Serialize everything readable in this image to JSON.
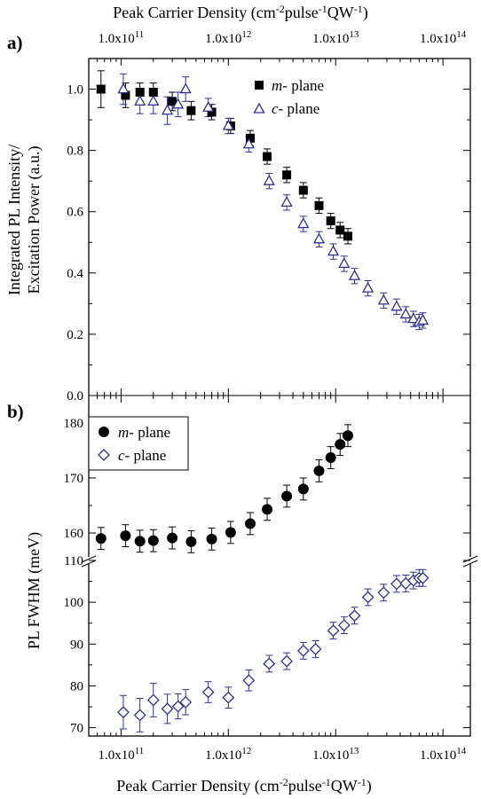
{
  "top_axis_label": "Peak Carrier Density (cm-2pulse-1QW-1)",
  "bottom_axis_label": "Peak Carrier Density (cm-2pulse-1QW-1)",
  "x_tick_labels": [
    "1.0x10^11",
    "1.0x10^12",
    "1.0x10^13",
    "1.0x10^14"
  ],
  "chart_data": [
    {
      "panel_label": "a)",
      "type": "scatter",
      "xlabel": "Peak Carrier Density (cm-2pulse-1QW-1)",
      "ylabel_lines": [
        "Integrated PL Intensity/",
        "Excitation Power (a.u.)"
      ],
      "xscale": "log",
      "xlim": [
        50000000000.0,
        180000000000000.0
      ],
      "ylim": [
        0,
        1.1
      ],
      "y_ticks": [
        "0.0",
        "0.2",
        "0.4",
        "0.6",
        "0.8",
        "1.0"
      ],
      "legend_position": "top-right",
      "series": [
        {
          "name": "m- plane",
          "italic_part": "m",
          "label_rest": "- plane",
          "marker": "filled-square",
          "color": "#000000",
          "x": [
            65000000000.0,
            110000000000.0,
            150000000000.0,
            200000000000.0,
            300000000000.0,
            450000000000.0,
            700000000000.0,
            1050000000000.0,
            1600000000000.0,
            2300000000000.0,
            3500000000000.0,
            5000000000000.0,
            7000000000000.0,
            9000000000000.0,
            11000000000000.0,
            13000000000000.0
          ],
          "y": [
            1.0,
            0.98,
            0.99,
            0.99,
            0.96,
            0.93,
            0.925,
            0.88,
            0.84,
            0.78,
            0.72,
            0.67,
            0.62,
            0.57,
            0.54,
            0.52
          ],
          "err": [
            0.06,
            0.04,
            0.03,
            0.03,
            0.03,
            0.03,
            0.025,
            0.025,
            0.025,
            0.025,
            0.025,
            0.025,
            0.025,
            0.025,
            0.025,
            0.025
          ]
        },
        {
          "name": "c- plane",
          "italic_part": "c",
          "label_rest": "- plane",
          "marker": "open-triangle",
          "color": "#2e3192",
          "x": [
            105000000000.0,
            150000000000.0,
            200000000000.0,
            270000000000.0,
            340000000000.0,
            400000000000.0,
            650000000000.0,
            1000000000000.0,
            1550000000000.0,
            2400000000000.0,
            3500000000000.0,
            5000000000000.0,
            7000000000000.0,
            9500000000000.0,
            12000000000000.0,
            15000000000000.0,
            20000000000000.0,
            28000000000000.0,
            37000000000000.0,
            45000000000000.0,
            53000000000000.0,
            60000000000000.0,
            65000000000000.0
          ],
          "y": [
            1.0,
            0.96,
            0.96,
            0.93,
            0.95,
            1.0,
            0.94,
            0.88,
            0.82,
            0.7,
            0.63,
            0.56,
            0.51,
            0.47,
            0.43,
            0.39,
            0.35,
            0.31,
            0.29,
            0.265,
            0.25,
            0.24,
            0.245
          ],
          "err": [
            0.05,
            0.04,
            0.04,
            0.045,
            0.04,
            0.04,
            0.03,
            0.025,
            0.025,
            0.025,
            0.025,
            0.025,
            0.025,
            0.025,
            0.025,
            0.025,
            0.025,
            0.025,
            0.025,
            0.025,
            0.025,
            0.025,
            0.025
          ]
        }
      ]
    },
    {
      "panel_label": "b)",
      "type": "scatter",
      "xlabel": "Peak Carrier Density (cm-2pulse-1QW-1)",
      "ylabel": "PL FWHM (meV)",
      "xscale": "log",
      "xlim": [
        50000000000.0,
        180000000000000.0
      ],
      "axis_break": true,
      "y_segments": [
        {
          "range": [
            155,
            185
          ],
          "ticks": [
            160,
            170,
            180
          ]
        },
        {
          "range": [
            68,
            110
          ],
          "ticks": [
            70,
            80,
            90,
            100,
            110
          ]
        }
      ],
      "legend_position": "top-left",
      "series": [
        {
          "name": "m- plane",
          "italic_part": "m",
          "label_rest": "- plane",
          "marker": "filled-circle",
          "color": "#000000",
          "x": [
            65000000000.0,
            110000000000.0,
            150000000000.0,
            200000000000.0,
            300000000000.0,
            450000000000.0,
            700000000000.0,
            1050000000000.0,
            1600000000000.0,
            2300000000000.0,
            3500000000000.0,
            5000000000000.0,
            7000000000000.0,
            9000000000000.0,
            11000000000000.0,
            13000000000000.0
          ],
          "y": [
            159,
            159.5,
            158.5,
            158.6,
            159.1,
            158.4,
            158.9,
            160.1,
            161.7,
            164.3,
            166.7,
            168,
            171.3,
            173.7,
            176.1,
            177.7
          ],
          "err": [
            2,
            2,
            2,
            2,
            2,
            2,
            2,
            2,
            2,
            2,
            2,
            2,
            2,
            2,
            2,
            2
          ]
        },
        {
          "name": "c- plane",
          "italic_part": "c",
          "label_rest": "- plane",
          "marker": "open-diamond",
          "color": "#2e3192",
          "x": [
            105000000000.0,
            150000000000.0,
            200000000000.0,
            270000000000.0,
            340000000000.0,
            400000000000.0,
            650000000000.0,
            1000000000000.0,
            1550000000000.0,
            2400000000000.0,
            3500000000000.0,
            5000000000000.0,
            6500000000000.0,
            9500000000000.0,
            12000000000000.0,
            15000000000000.0,
            20000000000000.0,
            28000000000000.0,
            37000000000000.0,
            45000000000000.0,
            53000000000000.0,
            60000000000000.0,
            65000000000000.0
          ],
          "y": [
            73.7,
            73.0,
            76.6,
            74.5,
            75.1,
            76.1,
            78.5,
            77.2,
            81.3,
            85.3,
            85.9,
            88.4,
            88.8,
            93.2,
            94.5,
            96.8,
            101.2,
            102.3,
            104.4,
            104.5,
            105.2,
            105.8,
            105.8
          ],
          "err": [
            4,
            4,
            4,
            3.5,
            3,
            3,
            2.5,
            2.5,
            2.5,
            2,
            2,
            2,
            2,
            2,
            2,
            2,
            2,
            2,
            2,
            2,
            2,
            2,
            2
          ]
        }
      ]
    }
  ]
}
